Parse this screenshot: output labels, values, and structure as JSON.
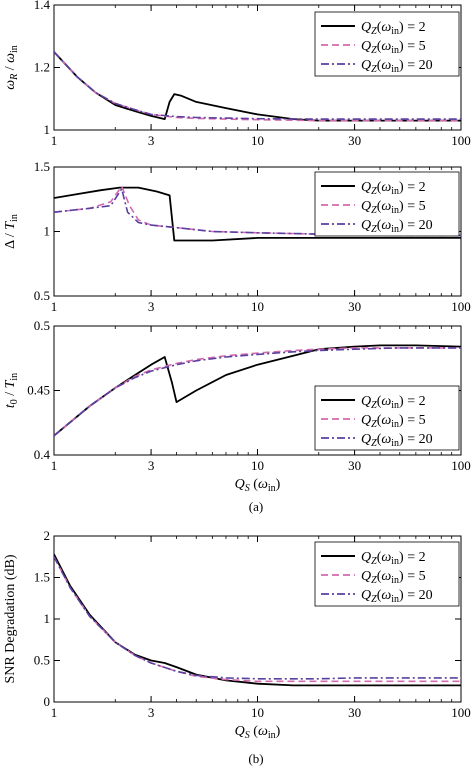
{
  "chart_data": [
    {
      "type": "line",
      "panel": "top",
      "ylabel": "ωR / ωin",
      "xlabel": "",
      "xscale": "log",
      "xlim": [
        1,
        100
      ],
      "ylim": [
        1,
        1.4
      ],
      "xticks": [
        1,
        3,
        10,
        30,
        100
      ],
      "xtick_labels": [
        "1",
        "3",
        "10",
        "30",
        "100"
      ],
      "yticks": [
        1,
        1.2,
        1.4
      ],
      "ytick_labels": [
        "1",
        "1.2",
        "1.4"
      ],
      "legend": "top-right",
      "legend_entries": [
        "QZ(ωin) = 2",
        "QZ(ωin) = 5",
        "QZ(ωin) = 20"
      ],
      "series": [
        {
          "name": "QZ(ωin) = 2",
          "color": "#000000",
          "dash": "solid",
          "x": [
            1,
            1.3,
            1.6,
            2,
            2.5,
            3,
            3.5,
            3.7,
            3.9,
            4.2,
            5,
            7,
            10,
            15,
            20,
            30,
            50,
            100
          ],
          "y": [
            1.25,
            1.17,
            1.12,
            1.08,
            1.06,
            1.045,
            1.035,
            1.09,
            1.115,
            1.11,
            1.09,
            1.07,
            1.05,
            1.035,
            1.03,
            1.03,
            1.03,
            1.03
          ]
        },
        {
          "name": "QZ(ωin) = 5",
          "color": "#d36bb0",
          "dash": "dashed",
          "x": [
            1,
            1.3,
            1.6,
            2,
            2.5,
            3,
            4,
            5,
            7,
            10,
            20,
            30,
            50,
            100
          ],
          "y": [
            1.25,
            1.17,
            1.12,
            1.085,
            1.065,
            1.05,
            1.04,
            1.037,
            1.035,
            1.033,
            1.03,
            1.03,
            1.03,
            1.03
          ]
        },
        {
          "name": "QZ(ωin) = 20",
          "color": "#5a3fa0",
          "dash": "dashdot",
          "x": [
            1,
            1.3,
            1.6,
            2,
            2.5,
            3,
            4,
            5,
            7,
            10,
            20,
            30,
            50,
            100
          ],
          "y": [
            1.25,
            1.17,
            1.12,
            1.085,
            1.065,
            1.05,
            1.043,
            1.04,
            1.038,
            1.036,
            1.035,
            1.035,
            1.035,
            1.035
          ]
        }
      ]
    },
    {
      "type": "line",
      "panel": "second",
      "ylabel": "Δ / Tin",
      "xlabel": "",
      "xscale": "log",
      "xlim": [
        1,
        100
      ],
      "ylim": [
        0.5,
        1.5
      ],
      "xticks": [
        1,
        3,
        10,
        30,
        100
      ],
      "xtick_labels": [
        "1",
        "3",
        "10",
        "30",
        "100"
      ],
      "yticks": [
        0.5,
        1,
        1.5
      ],
      "ytick_labels": [
        "0.5",
        "1",
        "1.5"
      ],
      "legend": "top-right",
      "legend_entries": [
        "QZ(ωin) = 2",
        "QZ(ωin) = 5",
        "QZ(ωin) = 20"
      ],
      "series": [
        {
          "name": "QZ(ωin) = 2",
          "color": "#000000",
          "dash": "solid",
          "x": [
            1,
            1.3,
            1.7,
            2.1,
            2.6,
            3.2,
            3.7,
            3.9,
            4.3,
            6,
            10,
            20,
            50,
            100
          ],
          "y": [
            1.26,
            1.29,
            1.32,
            1.34,
            1.34,
            1.31,
            1.28,
            0.93,
            0.93,
            0.93,
            0.95,
            0.95,
            0.95,
            0.95
          ]
        },
        {
          "name": "QZ(ωin) = 5",
          "color": "#d36bb0",
          "dash": "dashed",
          "x": [
            1,
            1.5,
            1.9,
            2.15,
            2.35,
            2.6,
            3,
            4,
            6,
            10,
            20,
            50,
            100
          ],
          "y": [
            1.15,
            1.18,
            1.23,
            1.35,
            1.2,
            1.09,
            1.05,
            1.03,
            1.0,
            0.99,
            0.98,
            0.97,
            0.97
          ]
        },
        {
          "name": "QZ(ωin) = 20",
          "color": "#5a3fa0",
          "dash": "dashdot",
          "x": [
            1,
            1.5,
            1.9,
            2.15,
            2.3,
            2.6,
            3,
            4,
            6,
            10,
            20,
            50,
            100
          ],
          "y": [
            1.15,
            1.18,
            1.2,
            1.33,
            1.15,
            1.07,
            1.05,
            1.03,
            1.0,
            0.99,
            0.98,
            0.97,
            0.97
          ]
        }
      ]
    },
    {
      "type": "line",
      "panel": "third",
      "ylabel": "t0 / Tin",
      "xlabel": "QS (ωin)",
      "xscale": "log",
      "xlim": [
        1,
        100
      ],
      "ylim": [
        0.4,
        0.5
      ],
      "xticks": [
        1,
        3,
        10,
        30,
        100
      ],
      "xtick_labels": [
        "1",
        "3",
        "10",
        "30",
        "100"
      ],
      "yticks": [
        0.4,
        0.45,
        0.5
      ],
      "ytick_labels": [
        "0.4",
        "0.45",
        "0.5"
      ],
      "legend": "bottom-right",
      "legend_entries": [
        "QZ(ωin) = 2",
        "QZ(ωin) = 5",
        "QZ(ωin) = 20"
      ],
      "series": [
        {
          "name": "QZ(ωin) = 2",
          "color": "#000000",
          "dash": "solid",
          "x": [
            1,
            1.5,
            2,
            2.5,
            3,
            3.5,
            3.8,
            4,
            5,
            7,
            10,
            15,
            20,
            30,
            40,
            60,
            100
          ],
          "y": [
            0.415,
            0.438,
            0.452,
            0.462,
            0.47,
            0.476,
            0.456,
            0.441,
            0.45,
            0.462,
            0.47,
            0.477,
            0.482,
            0.484,
            0.485,
            0.485,
            0.484
          ]
        },
        {
          "name": "QZ(ωin) = 5",
          "color": "#d36bb0",
          "dash": "dashed",
          "x": [
            1,
            1.5,
            2,
            2.5,
            3,
            4,
            5,
            7,
            10,
            15,
            20,
            30,
            50,
            100
          ],
          "y": [
            0.415,
            0.438,
            0.452,
            0.461,
            0.466,
            0.471,
            0.474,
            0.477,
            0.479,
            0.481,
            0.482,
            0.483,
            0.483,
            0.483
          ]
        },
        {
          "name": "QZ(ωin) = 20",
          "color": "#5a3fa0",
          "dash": "dashdot",
          "x": [
            1,
            1.5,
            2,
            2.5,
            3,
            4,
            5,
            7,
            10,
            15,
            20,
            30,
            50,
            100
          ],
          "y": [
            0.415,
            0.438,
            0.452,
            0.46,
            0.465,
            0.47,
            0.473,
            0.476,
            0.478,
            0.48,
            0.481,
            0.482,
            0.483,
            0.483
          ]
        }
      ]
    },
    {
      "type": "line",
      "panel": "bottom",
      "ylabel": "SNR Degradation (dB)",
      "xlabel": "QS (ωin)",
      "xscale": "log",
      "xlim": [
        1,
        100
      ],
      "ylim": [
        0,
        2
      ],
      "xticks": [
        1,
        3,
        10,
        30,
        100
      ],
      "xtick_labels": [
        "1",
        "3",
        "10",
        "30",
        "100"
      ],
      "yticks": [
        0,
        0.5,
        1,
        1.5,
        2
      ],
      "ytick_labels": [
        "0",
        "0.5",
        "1",
        "1.5",
        "2"
      ],
      "legend": "top-right",
      "legend_entries": [
        "QZ(ωin) = 2",
        "QZ(ωin) = 5",
        "QZ(ωin) = 20"
      ],
      "series": [
        {
          "name": "QZ(ωin) = 2",
          "color": "#000000",
          "dash": "solid",
          "x": [
            1,
            1.2,
            1.5,
            2,
            2.5,
            3,
            3.5,
            4,
            5,
            7,
            10,
            15,
            20,
            30,
            50,
            100
          ],
          "y": [
            1.78,
            1.4,
            1.05,
            0.72,
            0.57,
            0.5,
            0.47,
            0.42,
            0.33,
            0.26,
            0.22,
            0.2,
            0.2,
            0.2,
            0.2,
            0.2
          ]
        },
        {
          "name": "QZ(ωin) = 5",
          "color": "#d36bb0",
          "dash": "dashed",
          "x": [
            1,
            1.2,
            1.5,
            2,
            2.5,
            3,
            4,
            5,
            7,
            10,
            15,
            20,
            30,
            50,
            100
          ],
          "y": [
            1.75,
            1.38,
            1.03,
            0.72,
            0.56,
            0.47,
            0.37,
            0.31,
            0.27,
            0.25,
            0.25,
            0.25,
            0.25,
            0.25,
            0.25
          ]
        },
        {
          "name": "QZ(ωin) = 20",
          "color": "#5a3fa0",
          "dash": "dashdot",
          "x": [
            1,
            1.2,
            1.5,
            2,
            2.5,
            3,
            4,
            5,
            7,
            10,
            15,
            20,
            30,
            50,
            100
          ],
          "y": [
            1.75,
            1.38,
            1.03,
            0.72,
            0.56,
            0.47,
            0.37,
            0.32,
            0.29,
            0.28,
            0.28,
            0.28,
            0.29,
            0.29,
            0.29
          ]
        }
      ]
    }
  ],
  "captions": [
    "(a)",
    "(b)"
  ]
}
